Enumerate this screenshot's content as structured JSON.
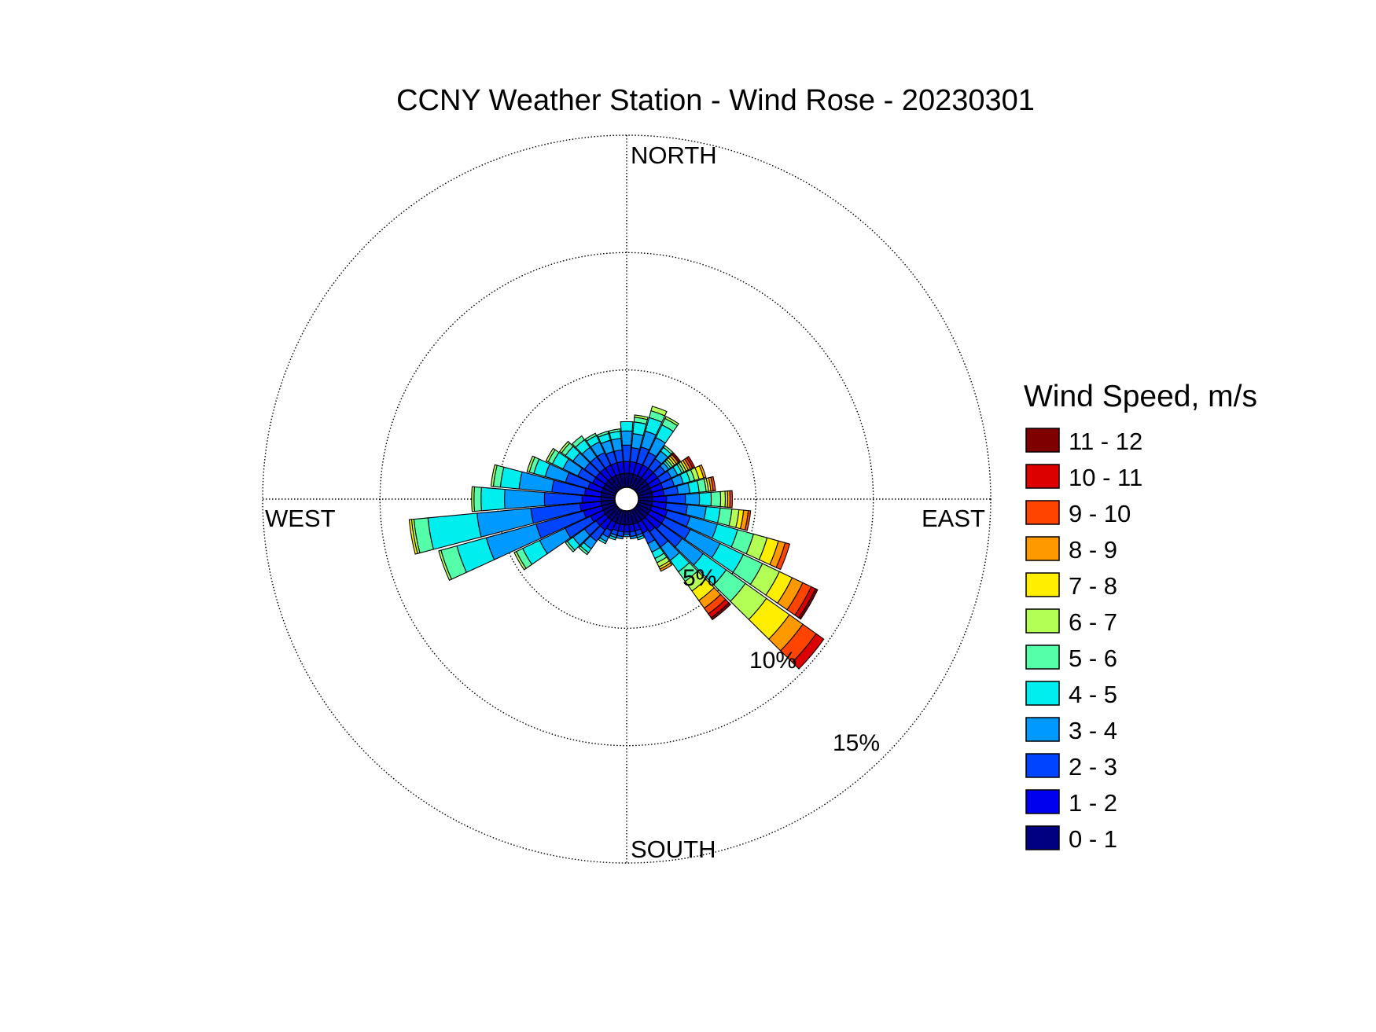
{
  "chart_data": {
    "type": "wind_rose",
    "title": "CCNY Weather Station - Wind Rose - 20230301",
    "directions": {
      "north": "NORTH",
      "east": "EAST",
      "south": "SOUTH",
      "west": "WEST"
    },
    "radial_axis": {
      "unit": "%",
      "ticks": [
        5,
        10,
        15
      ],
      "tick_labels": [
        "5%",
        "10%",
        "15%"
      ],
      "max": 15,
      "grid": "dotted"
    },
    "legend": {
      "title": "Wind Speed, m/s",
      "position": "right",
      "bins": [
        {
          "label": "11 - 12",
          "color": "#7f0000"
        },
        {
          "label": "10 - 11",
          "color": "#dd0000"
        },
        {
          "label": "9 - 10",
          "color": "#ff4400"
        },
        {
          "label": "8 - 9",
          "color": "#ff9900"
        },
        {
          "label": "7 - 8",
          "color": "#ffee00"
        },
        {
          "label": "6 - 7",
          "color": "#b4ff55"
        },
        {
          "label": "5 - 6",
          "color": "#55ffaa"
        },
        {
          "label": "4 - 5",
          "color": "#00eeee"
        },
        {
          "label": "3 - 4",
          "color": "#0099ff"
        },
        {
          "label": "2 - 3",
          "color": "#0044ff"
        },
        {
          "label": "1 - 2",
          "color": "#0000ee"
        },
        {
          "label": "0 - 1",
          "color": "#000080"
        }
      ]
    },
    "bin_order_inner_to_outer": [
      "0 - 1",
      "1 - 2",
      "2 - 3",
      "3 - 4",
      "4 - 5",
      "5 - 6",
      "6 - 7",
      "7 - 8",
      "8 - 9",
      "9 - 10",
      "10 - 11",
      "11 - 12"
    ],
    "sectors": [
      {
        "direction_deg": 0,
        "frequencies": [
          0.6,
          0.5,
          0.7,
          0.6,
          0.4,
          0,
          0,
          0,
          0,
          0,
          0,
          0
        ]
      },
      {
        "direction_deg": 10,
        "frequencies": [
          0.6,
          0.5,
          0.6,
          0.6,
          0.5,
          0.2,
          0.1,
          0,
          0,
          0,
          0,
          0
        ]
      },
      {
        "direction_deg": 20,
        "frequencies": [
          0.6,
          0.5,
          0.7,
          0.7,
          0.6,
          0.3,
          0.2,
          0,
          0,
          0,
          0,
          0
        ]
      },
      {
        "direction_deg": 30,
        "frequencies": [
          0.6,
          0.5,
          0.6,
          0.7,
          0.6,
          0.3,
          0.1,
          0,
          0,
          0,
          0,
          0
        ]
      },
      {
        "direction_deg": 40,
        "frequencies": [
          0.6,
          0.5,
          0.5,
          0.4,
          0.2,
          0.1,
          0,
          0,
          0,
          0,
          0,
          0
        ]
      },
      {
        "direction_deg": 50,
        "frequencies": [
          0.6,
          0.5,
          0.4,
          0.2,
          0.1,
          0.1,
          0.1,
          0.1,
          0.1,
          0,
          0,
          0.1
        ]
      },
      {
        "direction_deg": 60,
        "frequencies": [
          0.6,
          0.5,
          0.5,
          0.3,
          0.2,
          0.1,
          0.1,
          0.1,
          0.1,
          0.1,
          0.1,
          0
        ]
      },
      {
        "direction_deg": 70,
        "frequencies": [
          0.6,
          0.5,
          0.5,
          0.4,
          0.3,
          0.2,
          0.2,
          0.2,
          0.1,
          0,
          0,
          0
        ]
      },
      {
        "direction_deg": 80,
        "frequencies": [
          0.6,
          0.5,
          0.6,
          0.5,
          0.4,
          0.3,
          0.1,
          0.1,
          0.1,
          0.1,
          0,
          0
        ]
      },
      {
        "direction_deg": 90,
        "frequencies": [
          0.6,
          0.6,
          0.8,
          0.6,
          0.5,
          0.4,
          0.2,
          0.1,
          0.1,
          0.1,
          0,
          0
        ]
      },
      {
        "direction_deg": 100,
        "frequencies": [
          0.6,
          0.6,
          0.9,
          0.8,
          0.6,
          0.5,
          0.3,
          0.2,
          0.2,
          0.1,
          0,
          0
        ]
      },
      {
        "direction_deg": 110,
        "frequencies": [
          0.6,
          0.7,
          1.0,
          1.2,
          0.9,
          0.7,
          0.6,
          0.5,
          0.3,
          0.2,
          0,
          0
        ]
      },
      {
        "direction_deg": 120,
        "frequencies": [
          0.6,
          0.7,
          1.2,
          1.4,
          1.1,
          0.9,
          0.8,
          0.6,
          0.5,
          0.4,
          0.2,
          0.1
        ]
      },
      {
        "direction_deg": 130,
        "frequencies": [
          0.6,
          0.7,
          1.1,
          1.1,
          1.2,
          1.0,
          1.1,
          1.2,
          0.7,
          0.7,
          0.4,
          0
        ]
      },
      {
        "direction_deg": 140,
        "frequencies": [
          0.6,
          0.6,
          0.8,
          0.7,
          0.6,
          0.5,
          0.5,
          0.5,
          0.4,
          0.3,
          0.2,
          0.1
        ]
      },
      {
        "direction_deg": 150,
        "frequencies": [
          0.6,
          0.5,
          0.5,
          0.4,
          0.3,
          0.2,
          0.2,
          0.1,
          0.1,
          0,
          0,
          0
        ]
      },
      {
        "direction_deg": 160,
        "frequencies": [
          0.6,
          0.3,
          0.2,
          0.1,
          0.1,
          0,
          0,
          0,
          0,
          0,
          0,
          0
        ]
      },
      {
        "direction_deg": 170,
        "frequencies": [
          0.6,
          0.3,
          0.2,
          0.1,
          0,
          0,
          0,
          0,
          0,
          0,
          0,
          0
        ]
      },
      {
        "direction_deg": 180,
        "frequencies": [
          0.6,
          0.3,
          0.1,
          0.1,
          0,
          0,
          0,
          0,
          0,
          0,
          0,
          0
        ]
      },
      {
        "direction_deg": 190,
        "frequencies": [
          0.6,
          0.3,
          0.2,
          0.1,
          0,
          0,
          0,
          0,
          0,
          0,
          0,
          0
        ]
      },
      {
        "direction_deg": 200,
        "frequencies": [
          0.6,
          0.3,
          0.2,
          0.1,
          0.1,
          0,
          0,
          0,
          0,
          0,
          0,
          0
        ]
      },
      {
        "direction_deg": 210,
        "frequencies": [
          0.6,
          0.4,
          0.3,
          0.2,
          0.1,
          0,
          0,
          0,
          0,
          0,
          0,
          0
        ]
      },
      {
        "direction_deg": 220,
        "frequencies": [
          0.6,
          0.5,
          0.6,
          0.4,
          0.2,
          0.1,
          0,
          0,
          0,
          0,
          0,
          0
        ]
      },
      {
        "direction_deg": 230,
        "frequencies": [
          0.6,
          0.5,
          0.6,
          0.6,
          0.3,
          0.1,
          0,
          0,
          0,
          0,
          0,
          0
        ]
      },
      {
        "direction_deg": 240,
        "frequencies": [
          0.6,
          0.6,
          1.2,
          1.2,
          0.8,
          0.3,
          0.1,
          0,
          0,
          0,
          0,
          0
        ]
      },
      {
        "direction_deg": 250,
        "frequencies": [
          0.6,
          0.8,
          2.1,
          2.2,
          1.3,
          0.7,
          0.1,
          0,
          0,
          0,
          0,
          0
        ]
      },
      {
        "direction_deg": 260,
        "frequencies": [
          0.6,
          0.9,
          2.1,
          2.3,
          2.1,
          0.6,
          0.1,
          0.1,
          0,
          0,
          0,
          0
        ]
      },
      {
        "direction_deg": 270,
        "frequencies": [
          0.6,
          0.8,
          1.6,
          1.7,
          1.0,
          0.3,
          0.1,
          0,
          0,
          0,
          0,
          0
        ]
      },
      {
        "direction_deg": 280,
        "frequencies": [
          0.6,
          0.7,
          1.4,
          1.4,
          0.8,
          0.3,
          0.1,
          0,
          0,
          0,
          0,
          0
        ]
      },
      {
        "direction_deg": 290,
        "frequencies": [
          0.6,
          0.6,
          1.0,
          0.9,
          0.5,
          0.2,
          0.1,
          0,
          0,
          0,
          0,
          0
        ]
      },
      {
        "direction_deg": 300,
        "frequencies": [
          0.6,
          0.5,
          0.7,
          0.7,
          0.5,
          0.2,
          0.1,
          0,
          0,
          0,
          0,
          0
        ]
      },
      {
        "direction_deg": 310,
        "frequencies": [
          0.6,
          0.5,
          0.6,
          0.6,
          0.4,
          0.2,
          0.1,
          0,
          0,
          0,
          0,
          0
        ]
      },
      {
        "direction_deg": 320,
        "frequencies": [
          0.6,
          0.5,
          0.6,
          0.5,
          0.4,
          0.2,
          0,
          0,
          0,
          0,
          0,
          0
        ]
      },
      {
        "direction_deg": 330,
        "frequencies": [
          0.6,
          0.5,
          0.6,
          0.5,
          0.3,
          0.1,
          0,
          0,
          0,
          0,
          0,
          0
        ]
      },
      {
        "direction_deg": 340,
        "frequencies": [
          0.6,
          0.5,
          0.5,
          0.5,
          0.3,
          0.1,
          0,
          0,
          0,
          0,
          0,
          0
        ]
      },
      {
        "direction_deg": 350,
        "frequencies": [
          0.6,
          0.5,
          0.5,
          0.5,
          0.3,
          0.1,
          0,
          0,
          0,
          0,
          0,
          0
        ]
      }
    ]
  }
}
